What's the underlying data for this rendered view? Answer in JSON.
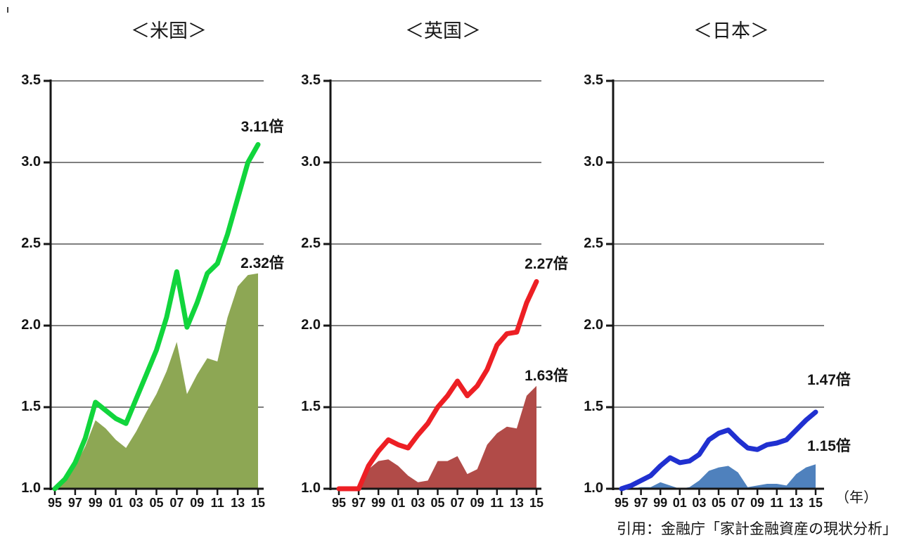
{
  "page": {
    "background": "#ffffff"
  },
  "footer": {
    "axis_unit": "（年）",
    "citation": "引用：金融庁「家計金融資産の現状分析」"
  },
  "chart_data": [
    {
      "type": "line",
      "title": "＜米国＞",
      "x_years": [
        1995,
        1996,
        1997,
        1998,
        1999,
        2000,
        2001,
        2002,
        2003,
        2004,
        2005,
        2006,
        2007,
        2008,
        2009,
        2010,
        2011,
        2012,
        2013,
        2014,
        2015
      ],
      "xtick_labels": [
        "95",
        "97",
        "99",
        "01",
        "03",
        "05",
        "07",
        "09",
        "11",
        "13",
        "15"
      ],
      "ylim": [
        1.0,
        3.5
      ],
      "ytick_values": [
        1.0,
        1.5,
        2.0,
        2.5,
        3.0,
        3.5
      ],
      "ytick_labels": [
        "1.0",
        "1.5",
        "2.0",
        "2.5",
        "3.0",
        "3.5"
      ],
      "grid": "horizontal",
      "grid_color": "#7f7f7f",
      "axis_color": "#161616",
      "series": [
        {
          "name": "3.11倍",
          "kind": "line",
          "color": "#11d53c",
          "values": [
            1.0,
            1.06,
            1.16,
            1.31,
            1.53,
            1.48,
            1.43,
            1.4,
            1.55,
            1.7,
            1.85,
            2.05,
            2.33,
            1.99,
            2.14,
            2.32,
            2.38,
            2.56,
            2.78,
            3.0,
            3.11
          ]
        },
        {
          "name": "2.32倍",
          "kind": "area",
          "color": "#8da754",
          "values": [
            1.0,
            1.05,
            1.14,
            1.26,
            1.42,
            1.37,
            1.3,
            1.25,
            1.35,
            1.47,
            1.58,
            1.72,
            1.9,
            1.58,
            1.7,
            1.8,
            1.78,
            2.05,
            2.24,
            2.31,
            2.32
          ]
        }
      ]
    },
    {
      "type": "line",
      "title": "＜英国＞",
      "x_years": [
        1995,
        1996,
        1997,
        1998,
        1999,
        2000,
        2001,
        2002,
        2003,
        2004,
        2005,
        2006,
        2007,
        2008,
        2009,
        2010,
        2011,
        2012,
        2013,
        2014,
        2015
      ],
      "xtick_labels": [
        "95",
        "97",
        "99",
        "01",
        "03",
        "05",
        "07",
        "09",
        "11",
        "13",
        "15"
      ],
      "ylim": [
        1.0,
        3.5
      ],
      "ytick_values": [
        1.0,
        1.5,
        2.0,
        2.5,
        3.0,
        3.5
      ],
      "ytick_labels": [
        "1.0",
        "1.5",
        "2.0",
        "2.5",
        "3.0",
        "3.5"
      ],
      "grid": "horizontal",
      "grid_color": "#7f7f7f",
      "axis_color": "#161616",
      "series": [
        {
          "name": "2.27倍",
          "kind": "line",
          "color": "#ed1f24",
          "values": [
            1.0,
            1.0,
            1.0,
            1.14,
            1.23,
            1.3,
            1.27,
            1.25,
            1.33,
            1.4,
            1.5,
            1.57,
            1.66,
            1.57,
            1.63,
            1.73,
            1.88,
            1.95,
            1.96,
            2.14,
            2.27
          ]
        },
        {
          "name": "1.63倍",
          "kind": "area",
          "color": "#b14b48",
          "values": [
            1.0,
            1.0,
            1.0,
            1.12,
            1.17,
            1.18,
            1.14,
            1.08,
            1.04,
            1.05,
            1.17,
            1.17,
            1.2,
            1.09,
            1.12,
            1.27,
            1.34,
            1.38,
            1.37,
            1.57,
            1.63
          ]
        }
      ]
    },
    {
      "type": "line",
      "title": "＜日本＞",
      "x_years": [
        1995,
        1996,
        1997,
        1998,
        1999,
        2000,
        2001,
        2002,
        2003,
        2004,
        2005,
        2006,
        2007,
        2008,
        2009,
        2010,
        2011,
        2012,
        2013,
        2014,
        2015
      ],
      "xtick_labels": [
        "95",
        "97",
        "99",
        "01",
        "03",
        "05",
        "07",
        "09",
        "11",
        "13",
        "15"
      ],
      "ylim": [
        1.0,
        3.5
      ],
      "ytick_values": [
        1.0,
        1.5,
        2.0,
        2.5,
        3.0,
        3.5
      ],
      "ytick_labels": [
        "1.0",
        "1.5",
        "2.0",
        "2.5",
        "3.0",
        "3.5"
      ],
      "grid": "horizontal",
      "grid_color": "#7f7f7f",
      "axis_color": "#161616",
      "series": [
        {
          "name": "1.47倍",
          "kind": "line",
          "color": "#2030d0",
          "values": [
            1.0,
            1.02,
            1.05,
            1.08,
            1.14,
            1.19,
            1.16,
            1.17,
            1.21,
            1.3,
            1.34,
            1.36,
            1.3,
            1.25,
            1.24,
            1.27,
            1.28,
            1.3,
            1.36,
            1.42,
            1.47
          ]
        },
        {
          "name": "1.15倍",
          "kind": "area",
          "color": "#4f81bd",
          "values": [
            1.0,
            1.0,
            1.01,
            1.01,
            1.04,
            1.02,
            1.0,
            1.01,
            1.05,
            1.11,
            1.13,
            1.14,
            1.1,
            1.01,
            1.02,
            1.03,
            1.03,
            1.02,
            1.09,
            1.13,
            1.15
          ]
        }
      ]
    }
  ]
}
